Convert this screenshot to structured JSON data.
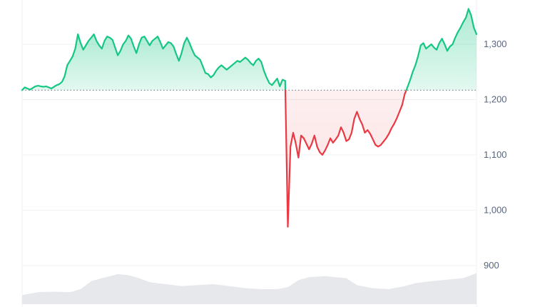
{
  "chart_data": {
    "type": "area",
    "baseline": 1217,
    "ylim": [
      825,
      1380
    ],
    "yticks": [
      {
        "value": 1300,
        "label": "1,300"
      },
      {
        "value": 1200,
        "label": "1,200"
      },
      {
        "value": 1100,
        "label": "1,100"
      },
      {
        "value": 1000,
        "label": "1,000"
      },
      {
        "value": 900,
        "label": "900"
      }
    ],
    "grid": true,
    "colors": {
      "up_line": "#16c784",
      "up_fill": "#16c784",
      "down_line": "#ea3943",
      "down_fill": "#ea3943",
      "volume_fill": "#e6e8ec",
      "grid": "#eff2f5",
      "baseline": "#6f7a8a"
    },
    "price_series": [
      [
        0,
        1217
      ],
      [
        1,
        1222
      ],
      [
        2,
        1220
      ],
      [
        3,
        1218
      ],
      [
        4,
        1221
      ],
      [
        5,
        1224
      ],
      [
        6,
        1225
      ],
      [
        7,
        1224
      ],
      [
        8,
        1223
      ],
      [
        9,
        1224
      ],
      [
        10,
        1222
      ],
      [
        11,
        1220
      ],
      [
        12,
        1223
      ],
      [
        13,
        1226
      ],
      [
        14,
        1228
      ],
      [
        15,
        1232
      ],
      [
        16,
        1242
      ],
      [
        17,
        1262
      ],
      [
        18,
        1270
      ],
      [
        19,
        1278
      ],
      [
        20,
        1292
      ],
      [
        21,
        1318
      ],
      [
        22,
        1302
      ],
      [
        23,
        1290
      ],
      [
        24,
        1298
      ],
      [
        25,
        1306
      ],
      [
        26,
        1312
      ],
      [
        27,
        1318
      ],
      [
        28,
        1306
      ],
      [
        29,
        1298
      ],
      [
        30,
        1292
      ],
      [
        31,
        1306
      ],
      [
        32,
        1314
      ],
      [
        33,
        1312
      ],
      [
        34,
        1308
      ],
      [
        35,
        1294
      ],
      [
        36,
        1280
      ],
      [
        37,
        1288
      ],
      [
        38,
        1300
      ],
      [
        39,
        1306
      ],
      [
        40,
        1316
      ],
      [
        41,
        1310
      ],
      [
        42,
        1296
      ],
      [
        43,
        1284
      ],
      [
        44,
        1300
      ],
      [
        45,
        1312
      ],
      [
        46,
        1314
      ],
      [
        47,
        1306
      ],
      [
        48,
        1298
      ],
      [
        49,
        1306
      ],
      [
        50,
        1310
      ],
      [
        51,
        1314
      ],
      [
        52,
        1304
      ],
      [
        53,
        1292
      ],
      [
        54,
        1298
      ],
      [
        55,
        1304
      ],
      [
        56,
        1302
      ],
      [
        57,
        1296
      ],
      [
        58,
        1282
      ],
      [
        59,
        1270
      ],
      [
        60,
        1284
      ],
      [
        61,
        1302
      ],
      [
        62,
        1312
      ],
      [
        63,
        1302
      ],
      [
        64,
        1290
      ],
      [
        65,
        1280
      ],
      [
        66,
        1276
      ],
      [
        67,
        1272
      ],
      [
        68,
        1260
      ],
      [
        69,
        1248
      ],
      [
        70,
        1246
      ],
      [
        71,
        1240
      ],
      [
        72,
        1244
      ],
      [
        73,
        1252
      ],
      [
        74,
        1258
      ],
      [
        75,
        1262
      ],
      [
        76,
        1258
      ],
      [
        77,
        1254
      ],
      [
        78,
        1258
      ],
      [
        79,
        1262
      ],
      [
        80,
        1266
      ],
      [
        81,
        1270
      ],
      [
        82,
        1268
      ],
      [
        83,
        1272
      ],
      [
        84,
        1276
      ],
      [
        85,
        1272
      ],
      [
        86,
        1266
      ],
      [
        87,
        1262
      ],
      [
        88,
        1270
      ],
      [
        89,
        1274
      ],
      [
        90,
        1268
      ],
      [
        91,
        1252
      ],
      [
        92,
        1240
      ],
      [
        93,
        1230
      ],
      [
        94,
        1226
      ],
      [
        95,
        1232
      ],
      [
        96,
        1238
      ],
      [
        97,
        1224
      ],
      [
        98,
        1236
      ],
      [
        99,
        1234
      ],
      [
        100,
        970
      ],
      [
        101,
        1115
      ],
      [
        102,
        1140
      ],
      [
        103,
        1120
      ],
      [
        104,
        1095
      ],
      [
        105,
        1135
      ],
      [
        106,
        1130
      ],
      [
        107,
        1120
      ],
      [
        108,
        1110
      ],
      [
        109,
        1120
      ],
      [
        110,
        1135
      ],
      [
        111,
        1115
      ],
      [
        112,
        1105
      ],
      [
        113,
        1100
      ],
      [
        114,
        1108
      ],
      [
        115,
        1118
      ],
      [
        116,
        1130
      ],
      [
        117,
        1122
      ],
      [
        118,
        1128
      ],
      [
        119,
        1135
      ],
      [
        120,
        1150
      ],
      [
        121,
        1140
      ],
      [
        122,
        1125
      ],
      [
        123,
        1128
      ],
      [
        124,
        1140
      ],
      [
        125,
        1165
      ],
      [
        126,
        1178
      ],
      [
        127,
        1165
      ],
      [
        128,
        1155
      ],
      [
        129,
        1140
      ],
      [
        130,
        1145
      ],
      [
        131,
        1138
      ],
      [
        132,
        1128
      ],
      [
        133,
        1118
      ],
      [
        134,
        1115
      ],
      [
        135,
        1118
      ],
      [
        136,
        1124
      ],
      [
        137,
        1130
      ],
      [
        138,
        1138
      ],
      [
        139,
        1148
      ],
      [
        140,
        1156
      ],
      [
        141,
        1166
      ],
      [
        142,
        1178
      ],
      [
        143,
        1190
      ],
      [
        144,
        1210
      ],
      [
        145,
        1222
      ],
      [
        146,
        1235
      ],
      [
        147,
        1250
      ],
      [
        148,
        1262
      ],
      [
        149,
        1278
      ],
      [
        150,
        1298
      ],
      [
        151,
        1302
      ],
      [
        152,
        1292
      ],
      [
        153,
        1296
      ],
      [
        154,
        1300
      ],
      [
        155,
        1294
      ],
      [
        156,
        1290
      ],
      [
        157,
        1302
      ],
      [
        158,
        1310
      ],
      [
        159,
        1300
      ],
      [
        160,
        1288
      ],
      [
        161,
        1296
      ],
      [
        162,
        1300
      ],
      [
        163,
        1312
      ],
      [
        164,
        1322
      ],
      [
        165,
        1330
      ],
      [
        166,
        1340
      ],
      [
        167,
        1348
      ],
      [
        168,
        1364
      ],
      [
        169,
        1352
      ],
      [
        170,
        1330
      ],
      [
        171,
        1318
      ]
    ],
    "volume_series": [
      [
        0,
        18
      ],
      [
        6,
        24
      ],
      [
        12,
        25
      ],
      [
        18,
        24
      ],
      [
        22,
        30
      ],
      [
        26,
        46
      ],
      [
        30,
        52
      ],
      [
        36,
        60
      ],
      [
        40,
        58
      ],
      [
        44,
        52
      ],
      [
        48,
        44
      ],
      [
        54,
        40
      ],
      [
        60,
        36
      ],
      [
        66,
        38
      ],
      [
        72,
        40
      ],
      [
        78,
        36
      ],
      [
        84,
        32
      ],
      [
        90,
        30
      ],
      [
        96,
        30
      ],
      [
        100,
        34
      ],
      [
        104,
        48
      ],
      [
        108,
        54
      ],
      [
        114,
        56
      ],
      [
        118,
        54
      ],
      [
        122,
        52
      ],
      [
        126,
        38
      ],
      [
        132,
        32
      ],
      [
        138,
        30
      ],
      [
        144,
        36
      ],
      [
        148,
        42
      ],
      [
        154,
        46
      ],
      [
        158,
        48
      ],
      [
        162,
        50
      ],
      [
        166,
        52
      ],
      [
        170,
        60
      ],
      [
        171,
        62
      ]
    ],
    "volume_max": 100
  }
}
